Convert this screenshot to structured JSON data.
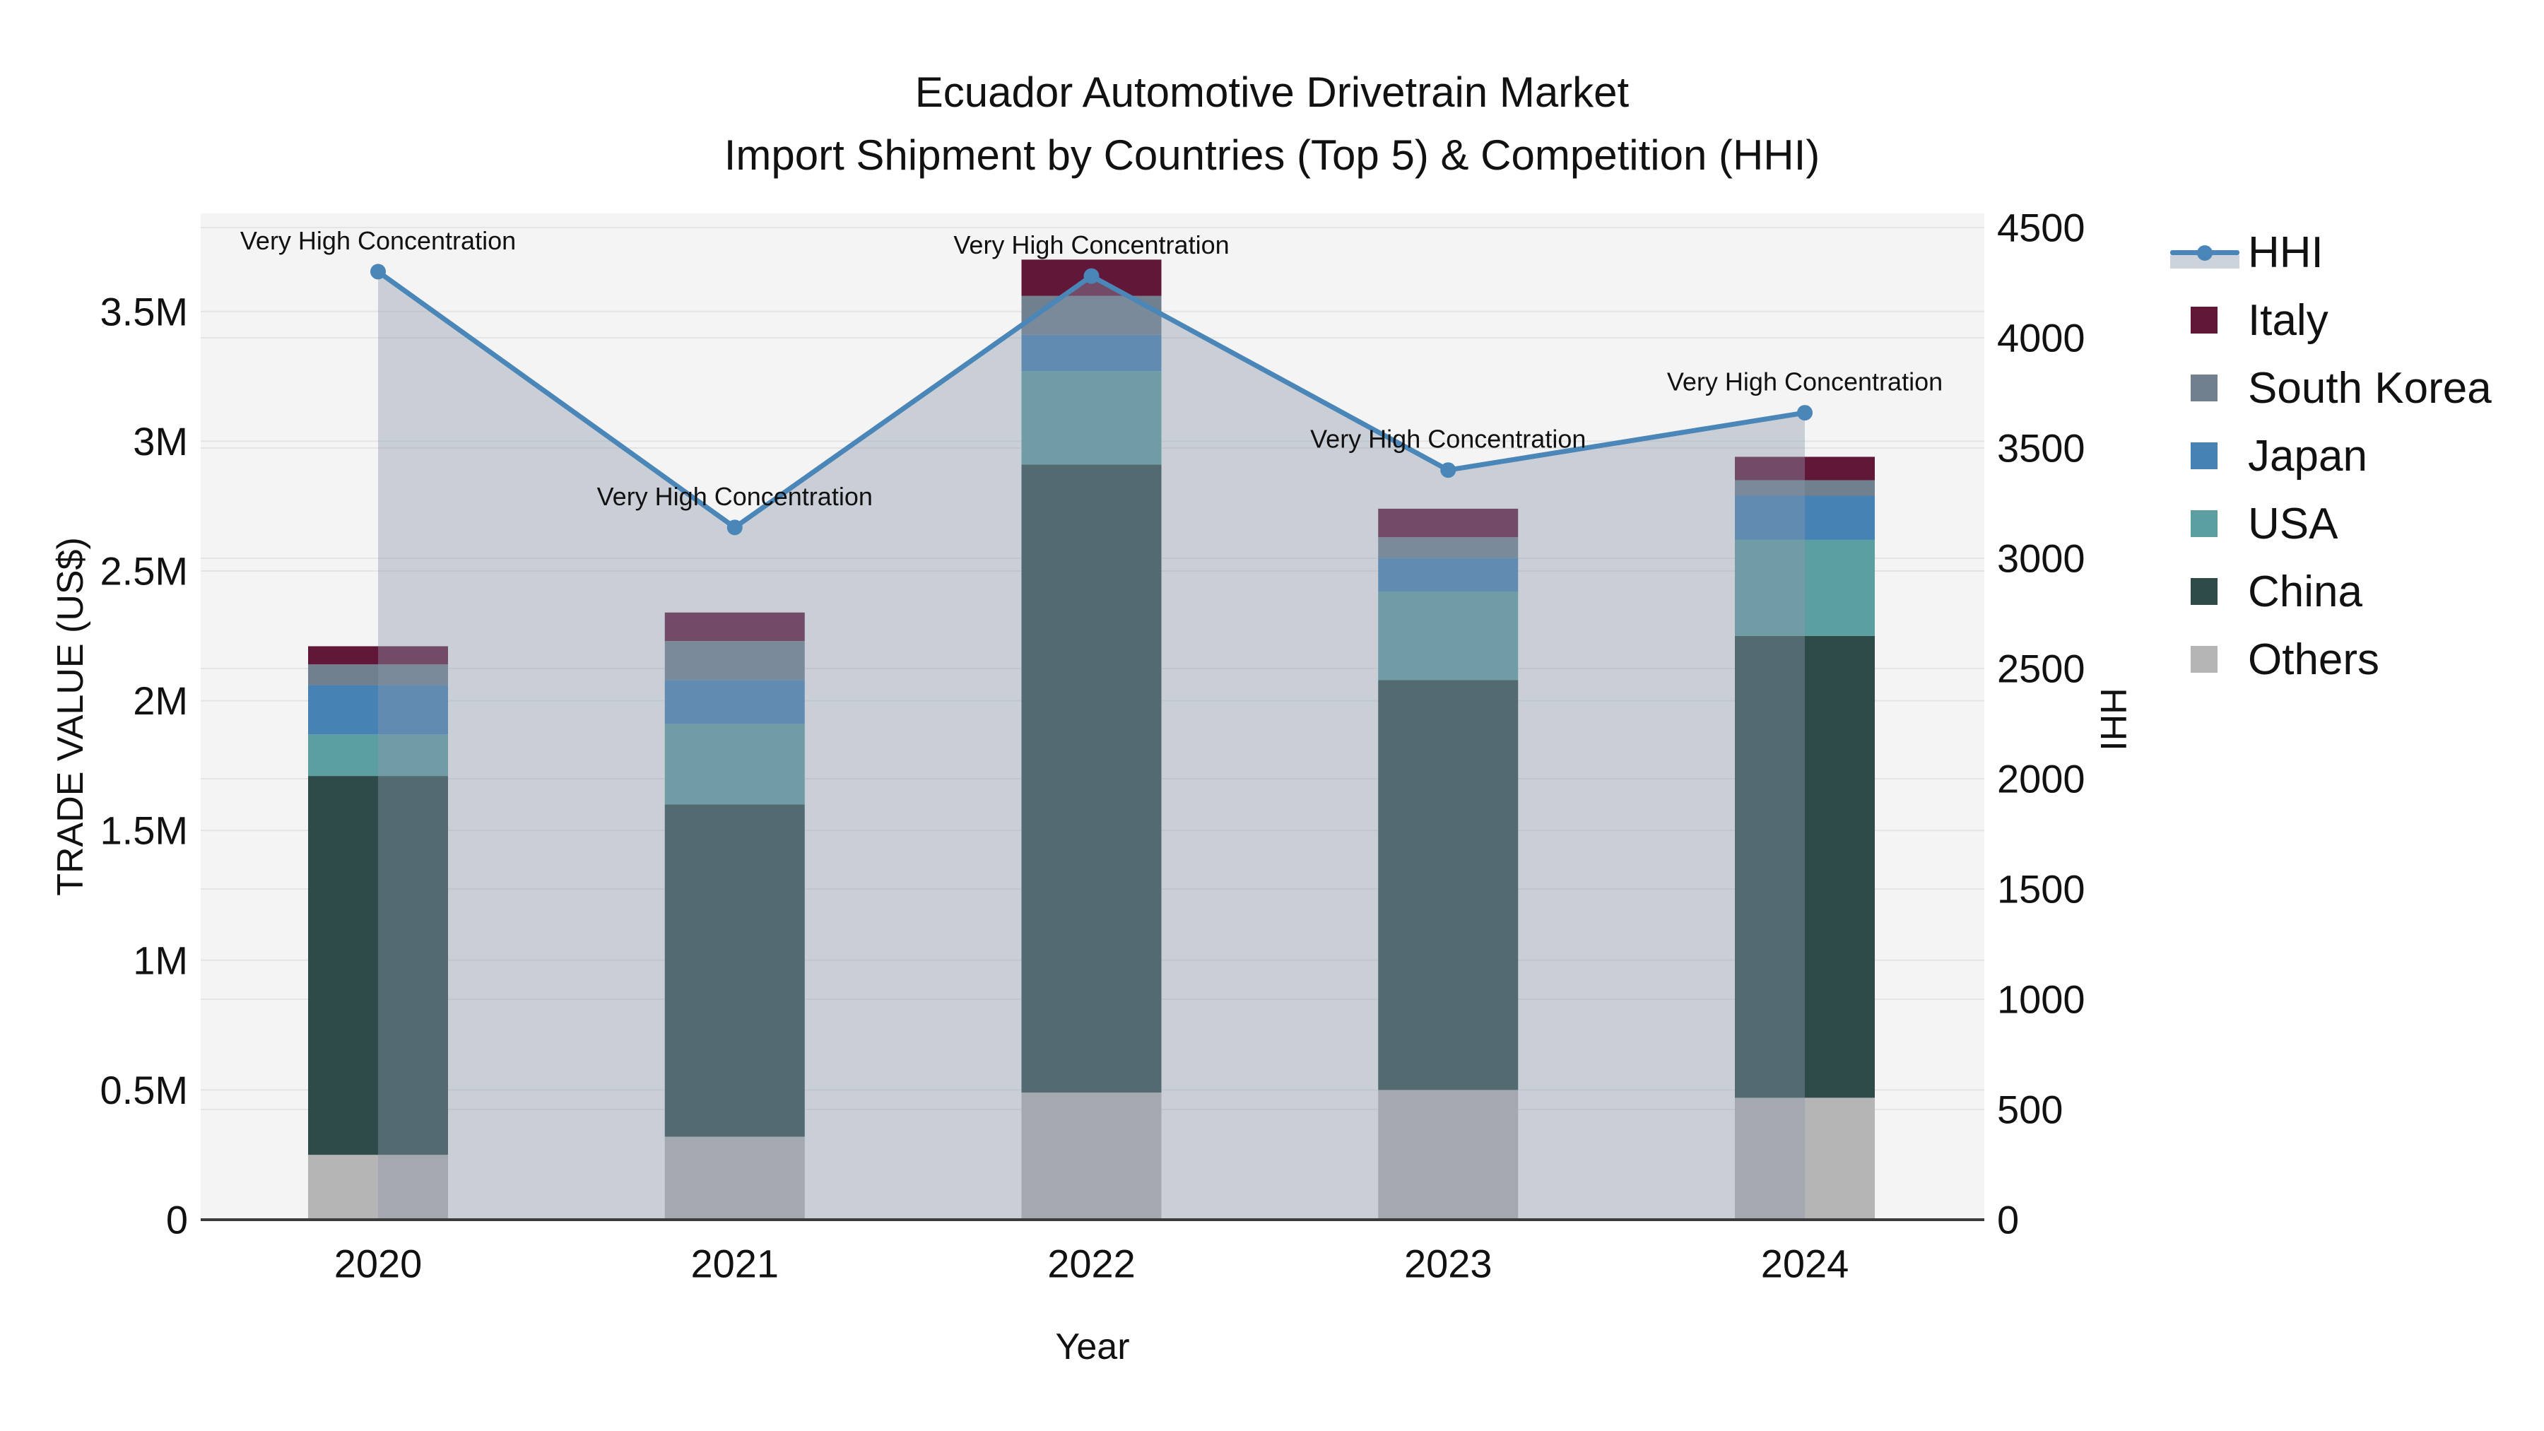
{
  "title": {
    "line1": "Ecuador Automotive Drivetrain Market",
    "line2": "Import Shipment by Countries (Top 5) & Competition (HHI)"
  },
  "axes": {
    "x_title": "Year",
    "y_left_title": "TRADE VALUE (US$)",
    "y_right_title": "HHI",
    "y_left_tick_labels": [
      "0",
      "0.5M",
      "1M",
      "1.5M",
      "2M",
      "2.5M",
      "3M",
      "3.5M"
    ],
    "y_right_tick_labels": [
      "0",
      "500",
      "1000",
      "1500",
      "2000",
      "2500",
      "3000",
      "3500",
      "4000",
      "4500"
    ]
  },
  "chart_data": {
    "type": "combo: stacked bar (left axis) + line with area fill (right axis)",
    "categories": [
      "2020",
      "2021",
      "2022",
      "2023",
      "2024"
    ],
    "bar_value_unit": "trade value, millions of US$",
    "ylim_left_millions": [
      0,
      3.88
    ],
    "ylim_right_hhi": [
      0,
      4565
    ],
    "grid": true,
    "series": [
      {
        "name": "Others",
        "color": "#b5b5b5",
        "values": [
          0.25,
          0.32,
          0.49,
          0.5,
          0.47
        ]
      },
      {
        "name": "China",
        "color": "#2e4b49",
        "values": [
          1.46,
          1.28,
          2.42,
          1.58,
          1.78
        ]
      },
      {
        "name": "USA",
        "color": "#5c9fa0",
        "values": [
          0.16,
          0.31,
          0.36,
          0.34,
          0.37
        ]
      },
      {
        "name": "Japan",
        "color": "#4682b4",
        "values": [
          0.19,
          0.17,
          0.14,
          0.13,
          0.17
        ]
      },
      {
        "name": "South Korea",
        "color": "#71808e",
        "values": [
          0.08,
          0.15,
          0.15,
          0.08,
          0.06
        ]
      },
      {
        "name": "Italy",
        "color": "#611838",
        "values": [
          0.07,
          0.11,
          0.14,
          0.11,
          0.09
        ]
      }
    ],
    "bar_totals_millions": [
      2.21,
      2.34,
      3.7,
      2.74,
      2.94
    ],
    "hhi_line": {
      "name": "HHI",
      "axis": "right",
      "values": [
        4300,
        3140,
        4280,
        3400,
        3660
      ],
      "color": "#4a86b8",
      "area_fill": "rgba(140,152,172,0.40)"
    },
    "annotations": [
      {
        "text": "Very High Concentration",
        "year": "2020"
      },
      {
        "text": "Very High Concentration",
        "year": "2021"
      },
      {
        "text": "Very High Concentration",
        "year": "2022"
      },
      {
        "text": "Very High Concentration",
        "year": "2023"
      },
      {
        "text": "Very High Concentration",
        "year": "2024"
      }
    ],
    "legend_position": "right"
  },
  "legend": {
    "items": [
      {
        "label": "HHI",
        "type": "line",
        "color": "#4a86b8"
      },
      {
        "label": "Italy",
        "type": "box",
        "color": "#611838"
      },
      {
        "label": "South Korea",
        "type": "box",
        "color": "#71808e"
      },
      {
        "label": "Japan",
        "type": "box",
        "color": "#4682b4"
      },
      {
        "label": "USA",
        "type": "box",
        "color": "#5c9fa0"
      },
      {
        "label": "China",
        "type": "box",
        "color": "#2e4b49"
      },
      {
        "label": "Others",
        "type": "box",
        "color": "#b5b5b5"
      }
    ]
  },
  "colors": {
    "plot_bg": "#f4f4f4",
    "gridline": "#e4e4e4",
    "axis_line": "#3b3b3b",
    "text": "#111111"
  }
}
